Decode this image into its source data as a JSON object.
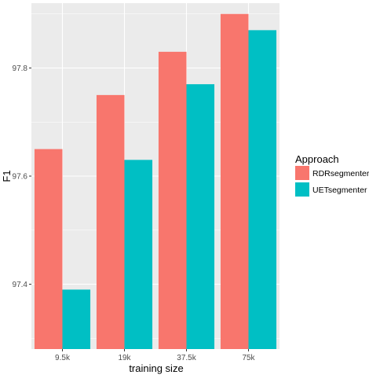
{
  "chart_data": {
    "type": "bar",
    "xlabel": "training size",
    "ylabel": "F1",
    "categories": [
      "9.5k",
      "19k",
      "37.5k",
      "75k"
    ],
    "series": [
      {
        "name": "RDRsegmenter",
        "color": "#F8766D",
        "values": [
          97.65,
          97.75,
          97.83,
          97.9
        ]
      },
      {
        "name": "UETsegmenter",
        "color": "#00BFC4",
        "values": [
          97.39,
          97.63,
          97.77,
          97.87
        ]
      }
    ],
    "ylim": [
      97.28,
      97.92
    ],
    "yticks": [
      97.4,
      97.6,
      97.8
    ],
    "ytick_labels": [
      "97.4",
      "97.6",
      "97.8"
    ],
    "grid": true,
    "panel_background": "#EBEBEB",
    "legend": {
      "title": "Approach",
      "position": "right"
    }
  }
}
